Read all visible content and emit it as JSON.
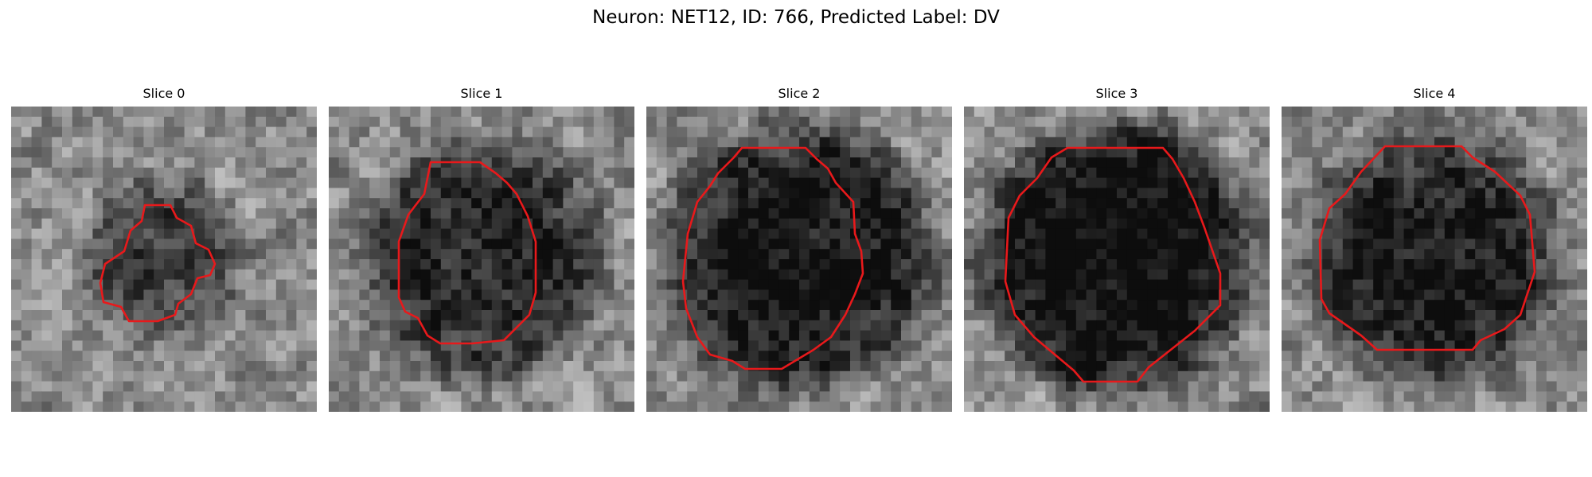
{
  "figure": {
    "title": "Neuron: NET12, ID: 766, Predicted Label: DV"
  },
  "panels": [
    {
      "title": "Slice 0",
      "seed": 11,
      "blob_radius": 0.3,
      "blob_darkness": 0.35
    },
    {
      "title": "Slice 1",
      "seed": 23,
      "blob_radius": 0.45,
      "blob_darkness": 0.45
    },
    {
      "title": "Slice 2",
      "seed": 37,
      "blob_radius": 0.5,
      "blob_darkness": 0.55
    },
    {
      "title": "Slice 3",
      "seed": 41,
      "blob_radius": 0.5,
      "blob_darkness": 0.62
    },
    {
      "title": "Slice 4",
      "seed": 53,
      "blob_radius": 0.47,
      "blob_darkness": 0.5
    }
  ],
  "contour_color": "#e8191b",
  "colormap": "gray"
}
